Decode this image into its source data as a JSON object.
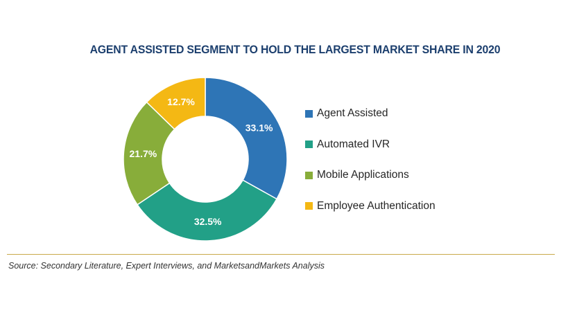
{
  "chart_data": {
    "type": "pie",
    "variant": "donut",
    "title": "AGENT ASSISTED SEGMENT TO HOLD THE LARGEST MARKET SHARE IN 2020",
    "unit": "%",
    "categories": [
      "Agent Assisted",
      "Automated IVR",
      "Mobile Applications",
      "Employee Authentication"
    ],
    "values": [
      33.1,
      32.5,
      21.7,
      12.7
    ],
    "value_labels": [
      "33.1%",
      "32.5%",
      "21.7%",
      "12.7%"
    ],
    "colors": [
      "#2e75b6",
      "#22a087",
      "#88ad3a",
      "#f4b814"
    ],
    "legend_position": "right"
  },
  "source": "Source: Secondary Literature, Expert Interviews, and MarketsandMarkets Analysis"
}
